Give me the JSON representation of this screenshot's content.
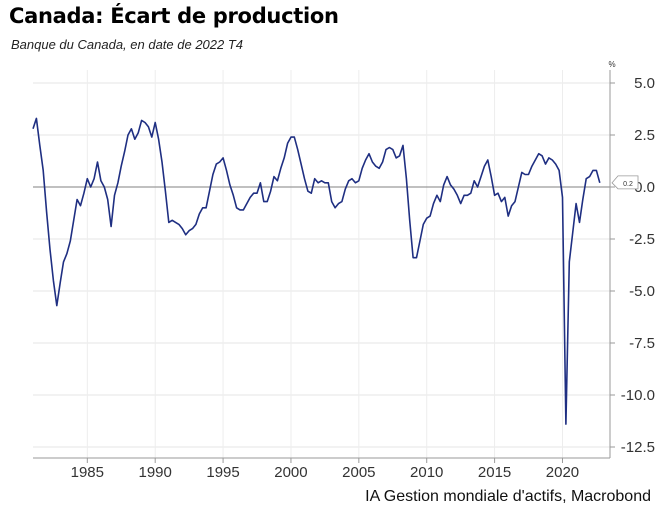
{
  "chart_data": {
    "type": "line",
    "title": "Canada: Écart de production",
    "subtitle": "Banque du Canada, en date de 2022 T4",
    "source": "IA Gestion mondiale d'actifs, Macrobond",
    "unit": "%",
    "ylim": [
      -13,
      5.5
    ],
    "xlim": [
      1981.0,
      2023.5
    ],
    "yticks": [
      5.0,
      2.5,
      0.0,
      -2.5,
      -5.0,
      -7.5,
      -10.0,
      -12.5
    ],
    "ytick_labels": [
      "5.0",
      "2.5",
      "0.0",
      "-2.5",
      "-5.0",
      "-7.5",
      "-10.0",
      "-12.5"
    ],
    "xticks": [
      1985,
      1990,
      1995,
      2000,
      2005,
      2010,
      2015,
      2020
    ],
    "xtick_labels": [
      "1985",
      "1990",
      "1995",
      "2000",
      "2005",
      "2010",
      "2015",
      "2020"
    ],
    "grid": true,
    "zero_line": true,
    "last_value_label": "0.2",
    "color": "#1f2f82",
    "series": [
      {
        "values": [
          [
            1981.0,
            2.8
          ],
          [
            1981.25,
            3.3
          ],
          [
            1981.5,
            2.0
          ],
          [
            1981.75,
            0.8
          ],
          [
            1982.0,
            -1.2
          ],
          [
            1982.25,
            -3.0
          ],
          [
            1982.5,
            -4.5
          ],
          [
            1982.75,
            -5.7
          ],
          [
            1983.0,
            -4.6
          ],
          [
            1983.25,
            -3.6
          ],
          [
            1983.5,
            -3.2
          ],
          [
            1983.75,
            -2.6
          ],
          [
            1984.0,
            -1.6
          ],
          [
            1984.25,
            -0.6
          ],
          [
            1984.5,
            -0.9
          ],
          [
            1984.75,
            -0.3
          ],
          [
            1985.0,
            0.4
          ],
          [
            1985.25,
            0.0
          ],
          [
            1985.5,
            0.4
          ],
          [
            1985.75,
            1.2
          ],
          [
            1986.0,
            0.3
          ],
          [
            1986.25,
            0.0
          ],
          [
            1986.5,
            -0.6
          ],
          [
            1986.75,
            -1.9
          ],
          [
            1987.0,
            -0.4
          ],
          [
            1987.25,
            0.2
          ],
          [
            1987.5,
            1.0
          ],
          [
            1987.75,
            1.7
          ],
          [
            1988.0,
            2.5
          ],
          [
            1988.25,
            2.8
          ],
          [
            1988.5,
            2.3
          ],
          [
            1988.75,
            2.6
          ],
          [
            1989.0,
            3.2
          ],
          [
            1989.25,
            3.1
          ],
          [
            1989.5,
            2.9
          ],
          [
            1989.75,
            2.4
          ],
          [
            1990.0,
            3.1
          ],
          [
            1990.25,
            2.3
          ],
          [
            1990.5,
            1.2
          ],
          [
            1990.75,
            -0.2
          ],
          [
            1991.0,
            -1.7
          ],
          [
            1991.25,
            -1.6
          ],
          [
            1991.5,
            -1.7
          ],
          [
            1991.75,
            -1.8
          ],
          [
            1992.0,
            -2.0
          ],
          [
            1992.25,
            -2.3
          ],
          [
            1992.5,
            -2.1
          ],
          [
            1992.75,
            -2.0
          ],
          [
            1993.0,
            -1.8
          ],
          [
            1993.25,
            -1.3
          ],
          [
            1993.5,
            -1.0
          ],
          [
            1993.75,
            -1.0
          ],
          [
            1994.0,
            -0.2
          ],
          [
            1994.25,
            0.6
          ],
          [
            1994.5,
            1.1
          ],
          [
            1994.75,
            1.2
          ],
          [
            1995.0,
            1.4
          ],
          [
            1995.25,
            0.8
          ],
          [
            1995.5,
            0.1
          ],
          [
            1995.75,
            -0.4
          ],
          [
            1996.0,
            -1.0
          ],
          [
            1996.25,
            -1.1
          ],
          [
            1996.5,
            -1.1
          ],
          [
            1996.75,
            -0.8
          ],
          [
            1997.0,
            -0.5
          ],
          [
            1997.25,
            -0.3
          ],
          [
            1997.5,
            -0.3
          ],
          [
            1997.75,
            0.2
          ],
          [
            1998.0,
            -0.7
          ],
          [
            1998.25,
            -0.7
          ],
          [
            1998.5,
            -0.2
          ],
          [
            1998.75,
            0.5
          ],
          [
            1999.0,
            0.3
          ],
          [
            1999.25,
            0.9
          ],
          [
            1999.5,
            1.4
          ],
          [
            1999.75,
            2.1
          ],
          [
            2000.0,
            2.4
          ],
          [
            2000.25,
            2.4
          ],
          [
            2000.5,
            1.8
          ],
          [
            2000.75,
            1.1
          ],
          [
            2001.0,
            0.4
          ],
          [
            2001.25,
            -0.2
          ],
          [
            2001.5,
            -0.3
          ],
          [
            2001.75,
            0.4
          ],
          [
            2002.0,
            0.2
          ],
          [
            2002.25,
            0.3
          ],
          [
            2002.5,
            0.2
          ],
          [
            2002.75,
            0.2
          ],
          [
            2003.0,
            -0.7
          ],
          [
            2003.25,
            -1.0
          ],
          [
            2003.5,
            -0.8
          ],
          [
            2003.75,
            -0.7
          ],
          [
            2004.0,
            -0.1
          ],
          [
            2004.25,
            0.3
          ],
          [
            2004.5,
            0.4
          ],
          [
            2004.75,
            0.2
          ],
          [
            2005.0,
            0.3
          ],
          [
            2005.25,
            0.9
          ],
          [
            2005.5,
            1.3
          ],
          [
            2005.75,
            1.6
          ],
          [
            2006.0,
            1.2
          ],
          [
            2006.25,
            1.0
          ],
          [
            2006.5,
            0.9
          ],
          [
            2006.75,
            1.2
          ],
          [
            2007.0,
            1.8
          ],
          [
            2007.25,
            1.9
          ],
          [
            2007.5,
            1.8
          ],
          [
            2007.75,
            1.4
          ],
          [
            2008.0,
            1.5
          ],
          [
            2008.25,
            2.0
          ],
          [
            2008.5,
            0.4
          ],
          [
            2008.75,
            -1.6
          ],
          [
            2009.0,
            -3.4
          ],
          [
            2009.25,
            -3.4
          ],
          [
            2009.5,
            -2.6
          ],
          [
            2009.75,
            -1.8
          ],
          [
            2010.0,
            -1.5
          ],
          [
            2010.25,
            -1.4
          ],
          [
            2010.5,
            -0.8
          ],
          [
            2010.75,
            -0.4
          ],
          [
            2011.0,
            -0.7
          ],
          [
            2011.25,
            0.1
          ],
          [
            2011.5,
            0.5
          ],
          [
            2011.75,
            0.1
          ],
          [
            2012.0,
            -0.1
          ],
          [
            2012.25,
            -0.4
          ],
          [
            2012.5,
            -0.8
          ],
          [
            2012.75,
            -0.4
          ],
          [
            2013.0,
            -0.4
          ],
          [
            2013.25,
            -0.3
          ],
          [
            2013.5,
            0.3
          ],
          [
            2013.75,
            0.0
          ],
          [
            2014.0,
            0.5
          ],
          [
            2014.25,
            1.0
          ],
          [
            2014.5,
            1.3
          ],
          [
            2014.75,
            0.5
          ],
          [
            2015.0,
            -0.4
          ],
          [
            2015.25,
            -0.3
          ],
          [
            2015.5,
            -0.7
          ],
          [
            2015.75,
            -0.5
          ],
          [
            2016.0,
            -1.4
          ],
          [
            2016.25,
            -0.9
          ],
          [
            2016.5,
            -0.7
          ],
          [
            2016.75,
            0.0
          ],
          [
            2017.0,
            0.7
          ],
          [
            2017.25,
            0.6
          ],
          [
            2017.5,
            0.6
          ],
          [
            2017.75,
            1.0
          ],
          [
            2018.0,
            1.3
          ],
          [
            2018.25,
            1.6
          ],
          [
            2018.5,
            1.5
          ],
          [
            2018.75,
            1.1
          ],
          [
            2019.0,
            1.4
          ],
          [
            2019.25,
            1.3
          ],
          [
            2019.5,
            1.1
          ],
          [
            2019.75,
            0.8
          ],
          [
            2020.0,
            -0.5
          ],
          [
            2020.25,
            -11.4
          ],
          [
            2020.5,
            -3.6
          ],
          [
            2020.75,
            -2.2
          ],
          [
            2021.0,
            -0.8
          ],
          [
            2021.25,
            -1.7
          ],
          [
            2021.5,
            -0.6
          ],
          [
            2021.75,
            0.4
          ],
          [
            2022.0,
            0.5
          ],
          [
            2022.25,
            0.8
          ],
          [
            2022.5,
            0.8
          ],
          [
            2022.75,
            0.2
          ]
        ]
      }
    ]
  }
}
